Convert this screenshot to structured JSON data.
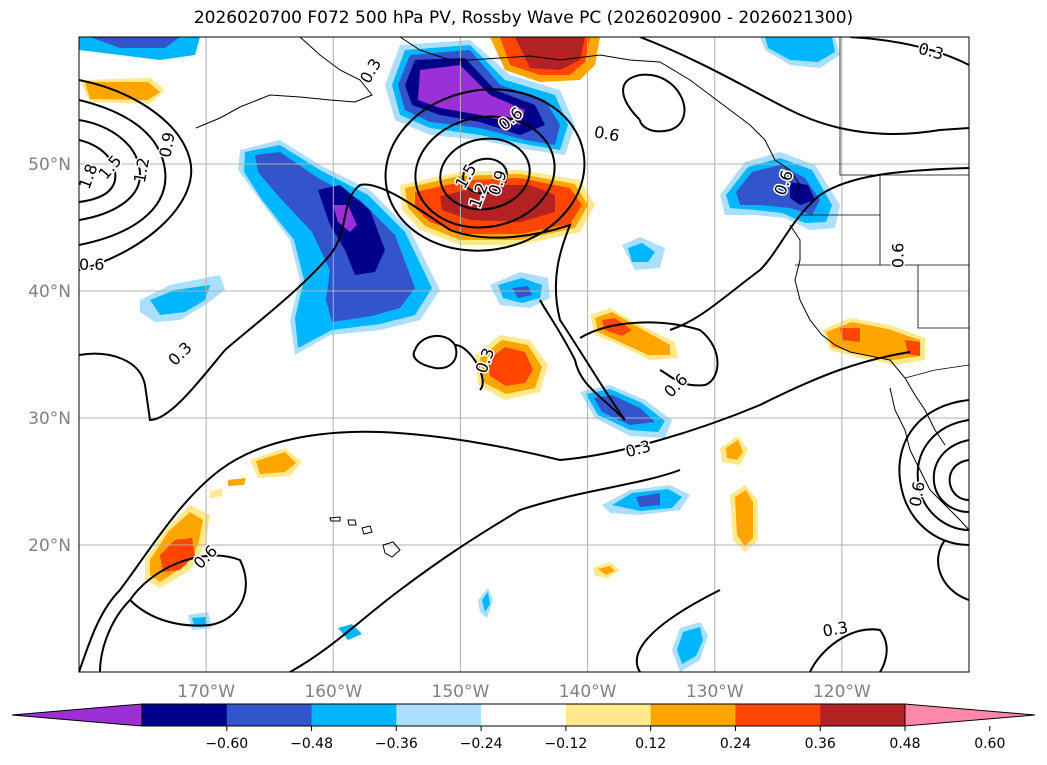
{
  "title": "2026020700 F072 500 hPa PV, Rossby Wave PC (2026020900 - 2026021300)",
  "chart_data": {
    "type": "heatmap",
    "projection": "lat-lon map",
    "lon_range": [
      -180,
      -110
    ],
    "lat_range": [
      10,
      60
    ],
    "lat_ticks": [
      {
        "value": 20,
        "label": "20°N"
      },
      {
        "value": 30,
        "label": "30°N"
      },
      {
        "value": 40,
        "label": "40°N"
      },
      {
        "value": 50,
        "label": "50°N"
      }
    ],
    "lon_ticks": [
      {
        "value": -170,
        "label": "170°W"
      },
      {
        "value": -160,
        "label": "160°W"
      },
      {
        "value": -150,
        "label": "150°W"
      },
      {
        "value": -140,
        "label": "140°W"
      },
      {
        "value": -130,
        "label": "130°W"
      },
      {
        "value": -120,
        "label": "120°W"
      }
    ],
    "grid": true,
    "colorbar": {
      "position": "bottom",
      "extend": "both",
      "colors": [
        "#9b30d6",
        "#00008b",
        "#3355cc",
        "#00b7ff",
        "#aadfff",
        "#ffffff",
        "#ffe98a",
        "#ffa500",
        "#ff4500",
        "#b22222",
        "#ff88aa"
      ],
      "tick_values": [
        -0.6,
        -0.48,
        -0.36,
        -0.24,
        -0.12,
        0.12,
        0.24,
        0.36,
        0.48,
        0.6
      ],
      "tick_labels": [
        "−0.60",
        "−0.48",
        "−0.36",
        "−0.24",
        "−0.12",
        "0.12",
        "0.24",
        "0.36",
        "0.48",
        "0.60"
      ]
    },
    "contour_labels": [
      {
        "text": "0.3",
        "lon": -172.0,
        "lat": 35.0,
        "angle": -45
      },
      {
        "text": "0.3",
        "lon": -148.0,
        "lat": 34.5,
        "angle": -70
      },
      {
        "text": "0.3",
        "lon": -136.0,
        "lat": 27.5,
        "angle": -15
      },
      {
        "text": "0.3",
        "lon": -113.0,
        "lat": 58.8,
        "angle": 15
      },
      {
        "text": "0.3",
        "lon": -120.5,
        "lat": 13.3,
        "angle": -10
      },
      {
        "text": "0.3",
        "lon": -157.0,
        "lat": 57.3,
        "angle": -60
      },
      {
        "text": "0.6",
        "lon": -170.0,
        "lat": 19.0,
        "angle": -45
      },
      {
        "text": "0.6",
        "lon": -133.0,
        "lat": 32.5,
        "angle": -45
      },
      {
        "text": "0.6",
        "lon": -138.5,
        "lat": 52.3,
        "angle": 10
      },
      {
        "text": "0.6",
        "lon": -179.0,
        "lat": 42.0,
        "angle": 0
      },
      {
        "text": "0.6",
        "lon": -124.5,
        "lat": 48.5,
        "angle": -70
      },
      {
        "text": "0.6",
        "lon": -115.5,
        "lat": 42.8,
        "angle": -90
      },
      {
        "text": "0.6",
        "lon": -114.0,
        "lat": 24.0,
        "angle": -80
      },
      {
        "text": "0.9",
        "lon": -173.0,
        "lat": 51.5,
        "angle": -80
      },
      {
        "text": "0.9",
        "lon": -147.0,
        "lat": 48.5,
        "angle": -70
      },
      {
        "text": "0.6",
        "lon": -146.0,
        "lat": 53.5,
        "angle": -40
      },
      {
        "text": "1.2",
        "lon": -175.0,
        "lat": 49.5,
        "angle": -80
      },
      {
        "text": "1.2",
        "lon": -148.5,
        "lat": 47.5,
        "angle": -70
      },
      {
        "text": "1.5",
        "lon": -177.5,
        "lat": 49.7,
        "angle": -50
      },
      {
        "text": "1.5",
        "lon": -149.5,
        "lat": 49.0,
        "angle": -60
      },
      {
        "text": "1.8",
        "lon": -179.2,
        "lat": 49.0,
        "angle": -70
      }
    ]
  }
}
